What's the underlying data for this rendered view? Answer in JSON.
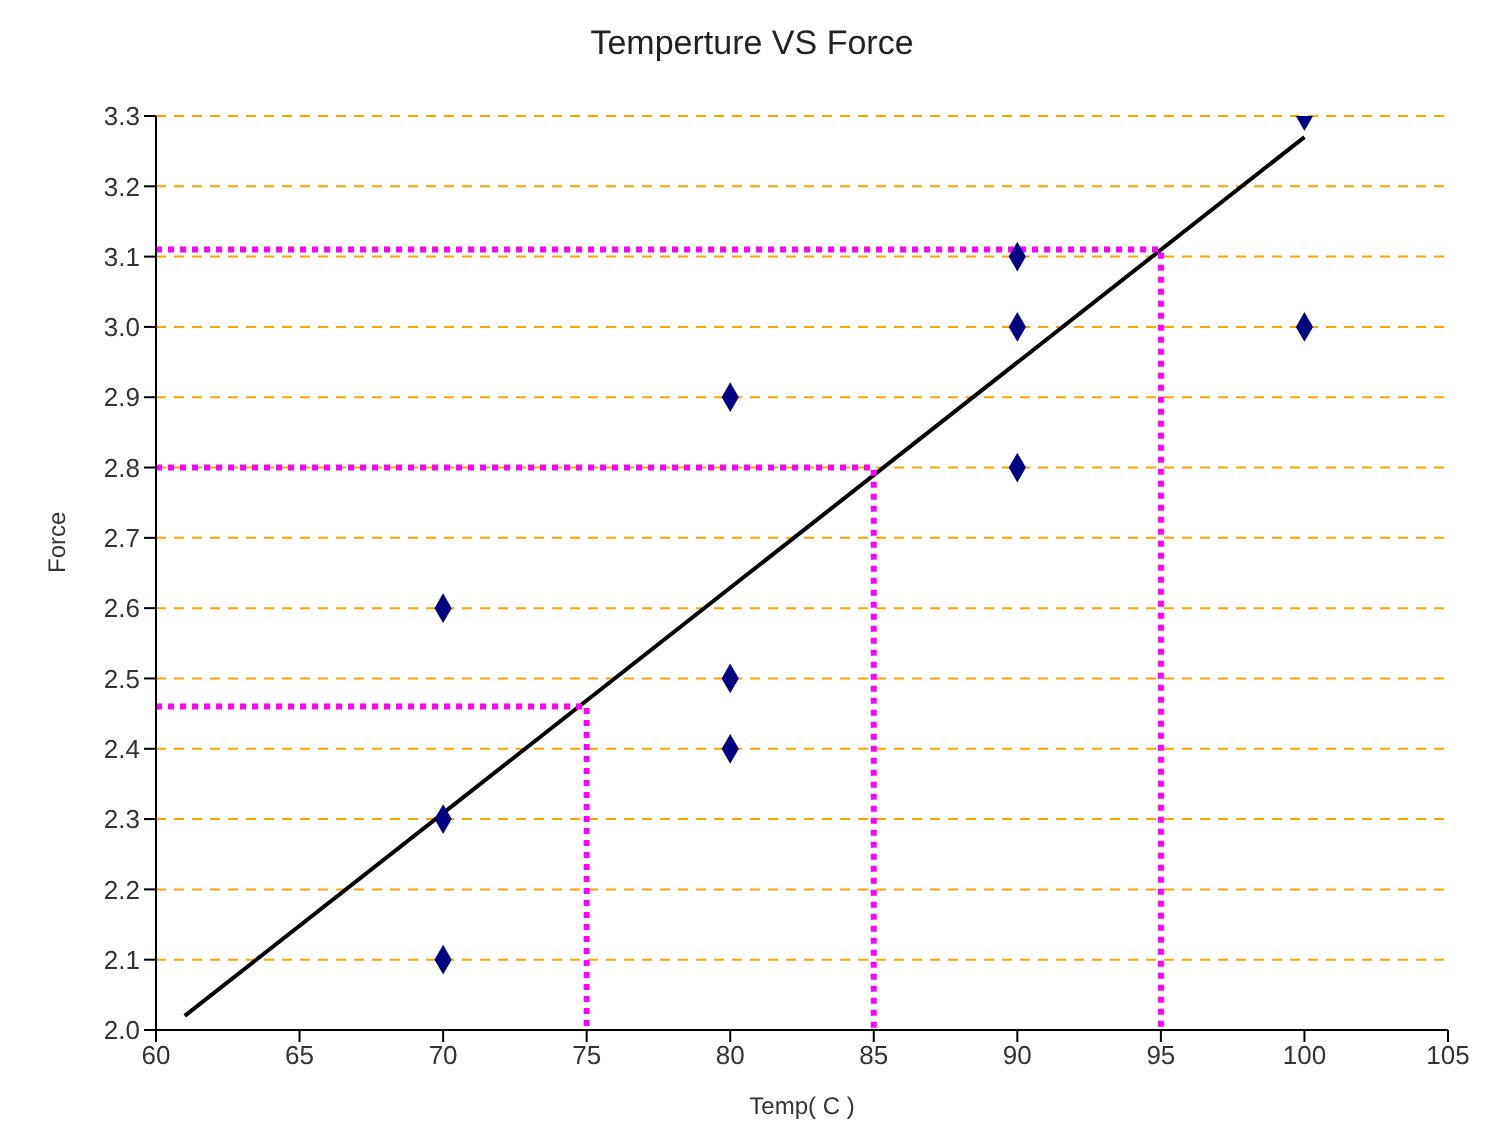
{
  "chart_data": {
    "type": "scatter",
    "title": "Temperture VS Force",
    "xlabel": "Temp( C )",
    "ylabel": "Force",
    "xlim": [
      60,
      105
    ],
    "xticks": [
      60,
      65,
      70,
      75,
      80,
      85,
      90,
      95,
      100,
      105
    ],
    "ylim": [
      2.0,
      3.3
    ],
    "yticks": [
      {
        "value": 2.0,
        "label": "2.0"
      },
      2.1,
      2.2,
      2.3,
      2.4,
      2.5,
      2.6,
      2.7,
      2.8,
      2.9,
      {
        "value": 3.0,
        "label": "3.0"
      },
      3.1,
      3.2,
      3.3
    ],
    "grid": "y",
    "series": [
      {
        "color": "#000080",
        "marker": "diamond",
        "x": [
          70,
          70,
          70,
          80,
          80,
          80,
          90,
          90,
          90,
          100,
          100
        ],
        "values": [
          2.6,
          2.3,
          2.1,
          2.9,
          2.5,
          2.4,
          3.1,
          3.0,
          2.8,
          3.3,
          3.0
        ]
      },
      {
        "type": "line",
        "color": "#000000",
        "marker": "none",
        "line_style": "solid",
        "x": [
          61,
          100
        ],
        "values": [
          2.02,
          3.27
        ]
      },
      {
        "type": "line",
        "color": "#ff00ff",
        "marker": "none",
        "line_style": "dotted",
        "x": [
          60,
          75,
          75
        ],
        "values": [
          2.46,
          2.46,
          2.0
        ]
      },
      {
        "type": "line",
        "color": "#ff00ff",
        "marker": "none",
        "line_style": "dotted",
        "x": [
          60,
          85,
          85
        ],
        "values": [
          2.8,
          2.8,
          2.0
        ]
      },
      {
        "type": "line",
        "color": "#ff00ff",
        "marker": "none",
        "line_style": "dotted",
        "x": [
          60,
          95,
          95
        ],
        "values": [
          3.11,
          3.11,
          2.0
        ]
      }
    ]
  }
}
